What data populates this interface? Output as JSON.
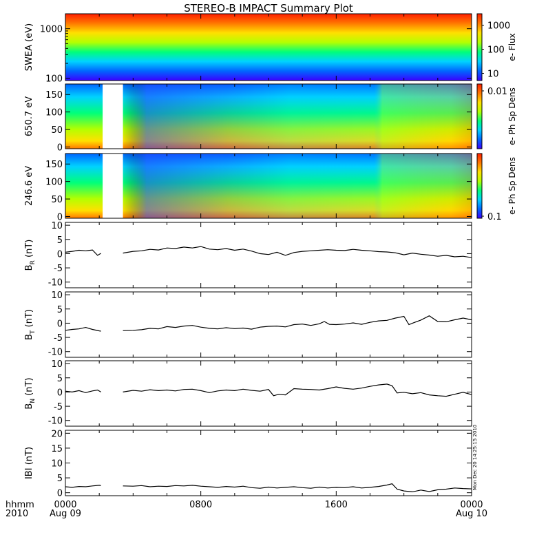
{
  "title": "STEREO-B IMPACT Summary Plot",
  "time_axis": {
    "row_label": "hhmm",
    "year_label": "2010",
    "range_hours": [
      0,
      24
    ],
    "ticks": [
      {
        "hour": 0,
        "label": "0000",
        "date": "Aug 09"
      },
      {
        "hour": 8,
        "label": "0800",
        "date": ""
      },
      {
        "hour": 16,
        "label": "1600",
        "date": ""
      },
      {
        "hour": 24,
        "label": "0000",
        "date": "Aug 10"
      }
    ]
  },
  "timestamp_text": "Mon Dec 20 14:25:15 2010",
  "colors": {
    "spectrogram_scale": [
      "#3a00ff",
      "#0066ff",
      "#00d2ff",
      "#00ff7a",
      "#b4ff00",
      "#ffe000",
      "#ff7800",
      "#ff1e00"
    ],
    "trace": "#000000"
  },
  "chart_data": [
    {
      "type": "heatmap",
      "ylabel": "SWEA (eV)",
      "yscale": "log",
      "ylim": [
        90,
        2000
      ],
      "ytick_labels": [
        "100",
        "1000"
      ],
      "yticks": [
        100,
        1000
      ],
      "colorbar": {
        "label": "e- Flux",
        "scale": "log",
        "tick_labels": [
          "10",
          "100",
          "1000"
        ],
        "ticks": [
          10,
          100,
          1000
        ],
        "range": [
          5,
          3000
        ]
      },
      "data_gaps_hours": []
    },
    {
      "type": "heatmap",
      "ylabel": "650.7 eV",
      "yscale": "linear",
      "ylim": [
        -5,
        180
      ],
      "ytick_labels": [
        "0",
        "50",
        "100",
        "150"
      ],
      "yticks": [
        0,
        50,
        100,
        150
      ],
      "colorbar": {
        "label": "e- Ph Sp Dens",
        "scale": "log",
        "tick_labels": [
          "0.01"
        ],
        "ticks": [
          0.01
        ]
      },
      "data_gaps_hours": [
        [
          2.2,
          3.4
        ]
      ]
    },
    {
      "type": "heatmap",
      "ylabel": "246.6 eV",
      "yscale": "linear",
      "ylim": [
        -5,
        180
      ],
      "ytick_labels": [
        "0",
        "50",
        "100",
        "150"
      ],
      "yticks": [
        0,
        50,
        100,
        150
      ],
      "colorbar": {
        "label": "e- Ph Sp Dens",
        "scale": "log",
        "tick_labels": [
          "0.1"
        ],
        "ticks": [
          0.1
        ]
      },
      "data_gaps_hours": [
        [
          2.2,
          3.4
        ]
      ]
    },
    {
      "type": "line",
      "ylabel": "B",
      "ylabel_sub": "R",
      "ylabel_unit": "(nT)",
      "ylim": [
        -12,
        11
      ],
      "yticks": [
        -10,
        -5,
        0,
        5,
        10
      ],
      "ytick_labels": [
        "-10",
        "-5",
        "0",
        "5",
        "10"
      ],
      "series": [
        {
          "segments": [
            {
              "x": [
                0.0,
                0.4,
                0.8,
                1.2,
                1.6,
                1.9,
                2.1
              ],
              "y": [
                0.5,
                0.8,
                1.2,
                1.0,
                1.3,
                -0.6,
                0.1
              ]
            },
            {
              "x": [
                3.4,
                4.0,
                4.5,
                5.0,
                5.5,
                6.0,
                6.5,
                7.0,
                7.5,
                8.0,
                8.5,
                9.0,
                9.5,
                10.0,
                10.5,
                11.0,
                11.5,
                12.0,
                12.5,
                13.0,
                13.5,
                14.0,
                14.5,
                15.0,
                15.5,
                16.0,
                16.5,
                17.0,
                17.5,
                18.0,
                18.5,
                19.0,
                19.5,
                20.0,
                20.5,
                21.0,
                21.5,
                22.0,
                22.5,
                23.0,
                23.5,
                24.0
              ],
              "y": [
                0.2,
                0.8,
                1.0,
                1.5,
                1.3,
                2.0,
                1.8,
                2.3,
                2.0,
                2.5,
                1.6,
                1.4,
                1.8,
                1.2,
                1.6,
                0.9,
                0.0,
                -0.3,
                0.5,
                -0.6,
                0.4,
                0.8,
                1.0,
                1.2,
                1.4,
                1.2,
                1.1,
                1.5,
                1.2,
                1.0,
                0.7,
                0.6,
                0.3,
                -0.4,
                0.2,
                -0.2,
                -0.5,
                -0.9,
                -0.6,
                -1.1,
                -0.9,
                -1.4
              ]
            }
          ]
        }
      ]
    },
    {
      "type": "line",
      "ylabel": "B",
      "ylabel_sub": "T",
      "ylabel_unit": "(nT)",
      "ylim": [
        -12,
        11
      ],
      "yticks": [
        -10,
        -5,
        0,
        5,
        10
      ],
      "ytick_labels": [
        "-10",
        "-5",
        "0",
        "5",
        "10"
      ],
      "series": [
        {
          "segments": [
            {
              "x": [
                0.0,
                0.4,
                0.8,
                1.2,
                1.6,
                2.0,
                2.1
              ],
              "y": [
                -2.5,
                -2.2,
                -2.0,
                -1.5,
                -2.2,
                -2.7,
                -2.8
              ]
            },
            {
              "x": [
                3.4,
                4.0,
                4.5,
                5.0,
                5.5,
                6.0,
                6.5,
                7.0,
                7.5,
                8.0,
                8.5,
                9.0,
                9.5,
                10.0,
                10.5,
                11.0,
                11.5,
                12.0,
                12.5,
                13.0,
                13.5,
                14.0,
                14.5,
                15.0,
                15.3,
                15.6,
                16.0,
                16.5,
                17.0,
                17.5,
                18.0,
                18.5,
                19.0,
                19.5,
                20.0,
                20.3,
                20.6,
                21.0,
                21.5,
                22.0,
                22.5,
                23.0,
                23.5,
                24.0
              ],
              "y": [
                -2.6,
                -2.5,
                -2.3,
                -1.8,
                -2.0,
                -1.2,
                -1.5,
                -1.0,
                -0.8,
                -1.4,
                -1.8,
                -2.0,
                -1.6,
                -1.9,
                -1.7,
                -2.1,
                -1.4,
                -1.1,
                -1.0,
                -1.3,
                -0.5,
                -0.3,
                -0.8,
                -0.2,
                0.6,
                -0.4,
                -0.5,
                -0.3,
                0.1,
                -0.4,
                0.3,
                0.8,
                1.0,
                1.8,
                2.4,
                -0.5,
                0.2,
                1.1,
                2.6,
                0.6,
                0.5,
                1.2,
                1.8,
                1.2
              ]
            }
          ]
        }
      ]
    },
    {
      "type": "line",
      "ylabel": "B",
      "ylabel_sub": "N",
      "ylabel_unit": "(nT)",
      "ylim": [
        -12,
        11
      ],
      "yticks": [
        -10,
        -5,
        0,
        5,
        10
      ],
      "ytick_labels": [
        "-10",
        "-5",
        "0",
        "5",
        "10"
      ],
      "series": [
        {
          "segments": [
            {
              "x": [
                0.0,
                0.4,
                0.8,
                1.2,
                1.6,
                1.9,
                2.1
              ],
              "y": [
                0.3,
                0.0,
                0.5,
                -0.2,
                0.4,
                0.7,
                0.0
              ]
            },
            {
              "x": [
                3.4,
                4.0,
                4.5,
                5.0,
                5.5,
                6.0,
                6.5,
                7.0,
                7.5,
                8.0,
                8.5,
                9.0,
                9.5,
                10.0,
                10.5,
                11.0,
                11.5,
                12.0,
                12.3,
                12.6,
                13.0,
                13.5,
                14.0,
                14.5,
                15.0,
                15.5,
                16.0,
                16.5,
                17.0,
                17.5,
                18.0,
                18.5,
                19.0,
                19.3,
                19.6,
                20.0,
                20.5,
                21.0,
                21.5,
                22.0,
                22.5,
                23.0,
                23.5,
                24.0
              ],
              "y": [
                0.0,
                0.6,
                0.3,
                0.8,
                0.5,
                0.7,
                0.4,
                0.9,
                1.0,
                0.5,
                -0.2,
                0.4,
                0.7,
                0.5,
                1.0,
                0.6,
                0.3,
                0.9,
                -1.3,
                -0.8,
                -1.0,
                1.2,
                1.0,
                0.9,
                0.7,
                1.2,
                1.8,
                1.3,
                1.0,
                1.4,
                2.0,
                2.5,
                2.8,
                2.2,
                -0.3,
                -0.1,
                -0.6,
                -0.2,
                -1.0,
                -1.3,
                -1.5,
                -0.8,
                -0.1,
                -0.9
              ]
            }
          ]
        }
      ]
    },
    {
      "type": "line",
      "ylabel": "IBI",
      "ylabel_sub": "",
      "ylabel_unit": "(nT)",
      "ylim": [
        -1,
        21
      ],
      "yticks": [
        0,
        5,
        10,
        15,
        20
      ],
      "ytick_labels": [
        "0",
        "5",
        "10",
        "15",
        "20"
      ],
      "series": [
        {
          "segments": [
            {
              "x": [
                0.0,
                0.4,
                0.8,
                1.2,
                1.6,
                2.0,
                2.1
              ],
              "y": [
                2.0,
                1.8,
                2.1,
                2.0,
                2.3,
                2.5,
                2.4
              ]
            },
            {
              "x": [
                3.4,
                4.0,
                4.5,
                5.0,
                5.5,
                6.0,
                6.5,
                7.0,
                7.5,
                8.0,
                8.5,
                9.0,
                9.5,
                10.0,
                10.5,
                11.0,
                11.5,
                12.0,
                12.5,
                13.0,
                13.5,
                14.0,
                14.5,
                15.0,
                15.5,
                16.0,
                16.5,
                17.0,
                17.5,
                18.0,
                18.5,
                19.0,
                19.3,
                19.6,
                20.0,
                20.5,
                21.0,
                21.5,
                22.0,
                22.5,
                23.0,
                23.5,
                24.0
              ],
              "y": [
                2.3,
                2.2,
                2.4,
                2.0,
                2.2,
                2.1,
                2.4,
                2.3,
                2.5,
                2.2,
                2.0,
                1.8,
                2.1,
                1.9,
                2.2,
                1.7,
                1.5,
                1.9,
                1.6,
                1.8,
                2.0,
                1.7,
                1.5,
                1.9,
                1.6,
                1.8,
                1.7,
                2.0,
                1.6,
                1.8,
                2.1,
                2.6,
                3.0,
                1.2,
                0.6,
                0.3,
                0.9,
                0.4,
                1.0,
                1.2,
                1.6,
                1.4,
                1.3
              ]
            }
          ]
        }
      ]
    }
  ]
}
